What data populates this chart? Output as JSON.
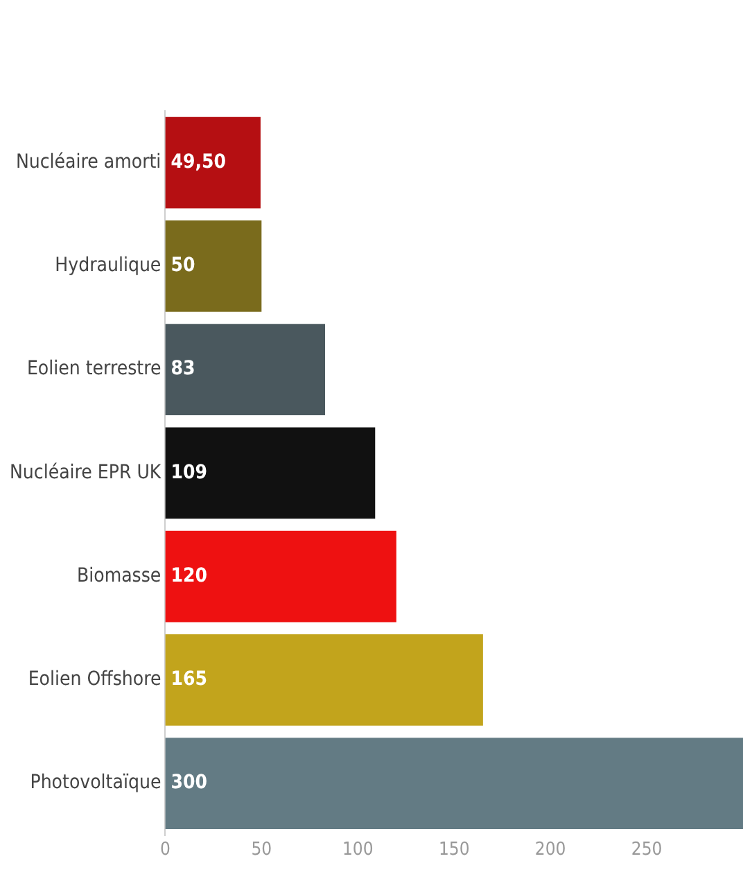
{
  "chart_data": {
    "type": "bar",
    "orientation": "horizontal",
    "categories": [
      "Nucléaire amorti",
      "Hydraulique",
      "Eolien terrestre",
      "Nucléaire EPR UK",
      "Biomasse",
      "Eolien Offshore",
      "Photovoltaïque"
    ],
    "values": [
      49.5,
      50,
      83,
      109,
      120,
      165,
      300
    ],
    "colors": [
      "#b50f12",
      "#7a6b1c",
      "#4a585e",
      "#111111",
      "#ee1111",
      "#c2a41c",
      "#637b84"
    ],
    "value_labels": [
      "49,50",
      "50",
      "83",
      "109",
      "120",
      "165",
      "300"
    ],
    "xlim": [
      0,
      300
    ],
    "xticks": [
      0,
      50,
      100,
      150,
      200,
      250
    ],
    "grid": false,
    "legend": false
  }
}
